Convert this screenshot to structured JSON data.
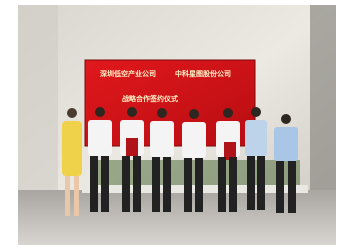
{
  "screen": {
    "left_company": "深圳低空产业公司",
    "right_company": "中科星图股份公司",
    "event": "战略合作签约仪式"
  }
}
